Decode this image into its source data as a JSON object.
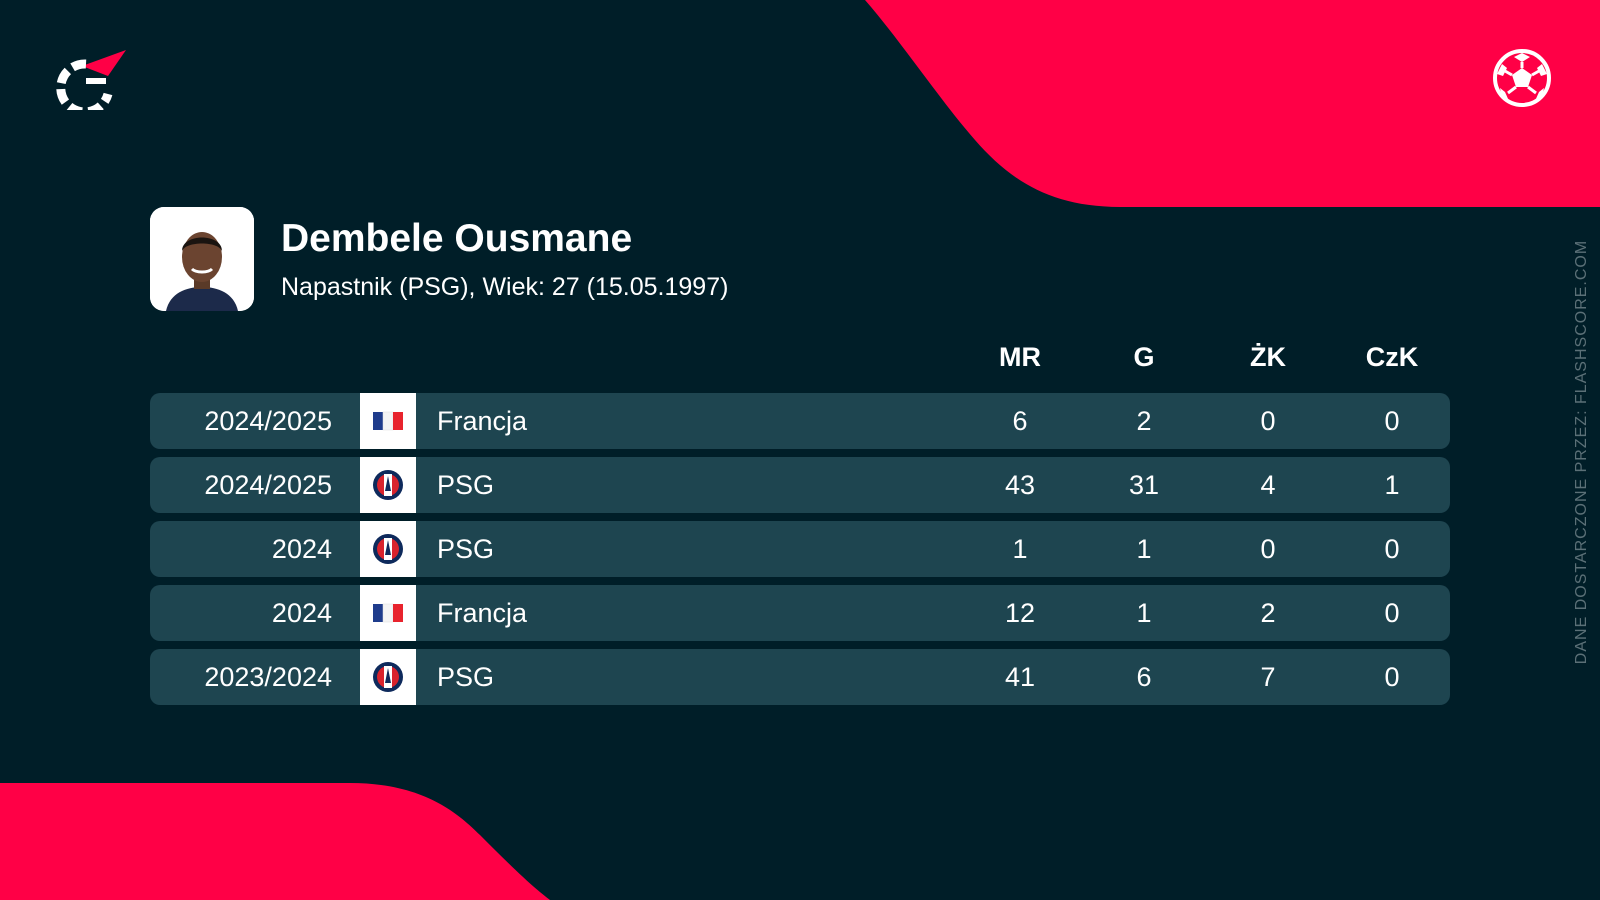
{
  "player": {
    "name": "Dembele Ousmane",
    "meta": "Napastnik (PSG), Wiek: 27 (15.05.1997)"
  },
  "credit": "DANE DOSTARCZONE PRZEZ: FLASHSCORE.COM",
  "columns": [
    "MR",
    "G",
    "ŻK",
    "CzK"
  ],
  "rows": [
    {
      "season": "2024/2025",
      "team": "Francja",
      "badge": "france-flag-icon",
      "stats": [
        "6",
        "2",
        "0",
        "0"
      ]
    },
    {
      "season": "2024/2025",
      "team": "PSG",
      "badge": "psg-crest-icon",
      "stats": [
        "43",
        "31",
        "4",
        "1"
      ]
    },
    {
      "season": "2024",
      "team": "PSG",
      "badge": "psg-crest-icon",
      "stats": [
        "1",
        "1",
        "0",
        "0"
      ]
    },
    {
      "season": "2024",
      "team": "Francja",
      "badge": "france-flag-icon",
      "stats": [
        "12",
        "1",
        "2",
        "0"
      ]
    },
    {
      "season": "2023/2024",
      "team": "PSG",
      "badge": "psg-crest-icon",
      "stats": [
        "41",
        "6",
        "7",
        "0"
      ]
    }
  ],
  "colors": {
    "background": "#001e28",
    "accent": "#ff0046",
    "row": "#1e4550"
  },
  "icons": {
    "logo": "flashscore-logo-icon",
    "sport": "football-icon"
  }
}
